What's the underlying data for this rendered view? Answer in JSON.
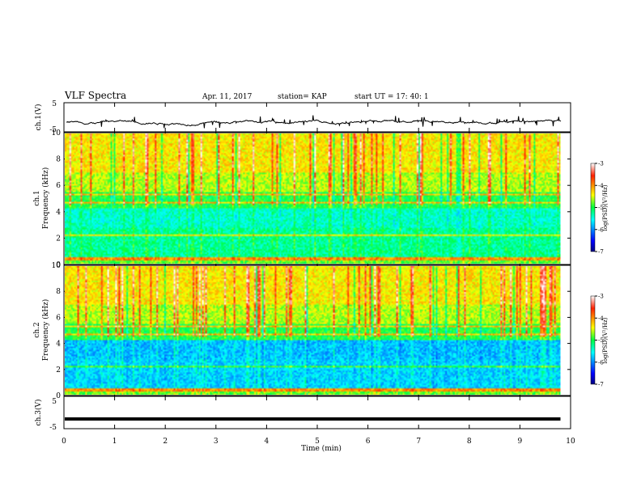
{
  "header": {
    "title": "VLF Spectra",
    "date": "Apr. 11, 2017",
    "station": "station= KAP",
    "start": "start  UT =   17: 40: 1"
  },
  "chart_data": [
    {
      "type": "line",
      "name": "ch1-waveform",
      "ylabel": "ch.1(V)",
      "xlim": [
        0,
        10
      ],
      "ylim": [
        -5,
        5
      ],
      "yticks": [
        "5",
        "-5"
      ],
      "approx_level": -1.5,
      "approx_range": [
        -3.5,
        1.5
      ]
    },
    {
      "type": "heatmap",
      "name": "ch1-spectrogram",
      "ylabel": "ch.1\nFrequency (kHz)",
      "xlim": [
        0,
        9.8
      ],
      "ylim": [
        0,
        10
      ],
      "yticks": [
        "0",
        "2",
        "4",
        "6",
        "8",
        "10"
      ],
      "colorbar": {
        "label": "log(PSD)(V²/Hz)",
        "range": [
          -7,
          -3
        ],
        "ticks": [
          "-3",
          "-4",
          "-5",
          "-6",
          "-7"
        ]
      }
    },
    {
      "type": "heatmap",
      "name": "ch2-spectrogram",
      "ylabel": "ch.2\nFrequency (kHz)",
      "xlim": [
        0,
        9.8
      ],
      "ylim": [
        0,
        10
      ],
      "yticks": [
        "0",
        "2",
        "4",
        "6",
        "8",
        "10"
      ],
      "colorbar": {
        "label": "log(PSD)(V²/Hz)",
        "range": [
          -7,
          -3
        ],
        "ticks": [
          "-3",
          "-4",
          "-5",
          "-6",
          "-7"
        ]
      }
    },
    {
      "type": "line",
      "name": "ch3-waveform",
      "ylabel": "ch.3(V)",
      "xlabel": "Time (min)",
      "xlim": [
        0,
        10
      ],
      "ylim": [
        -5,
        5
      ],
      "yticks": [
        "5",
        "-5"
      ],
      "xticks": [
        "0",
        "1",
        "2",
        "3",
        "4",
        "5",
        "6",
        "7",
        "8",
        "9",
        "10"
      ],
      "constant_value": -2
    }
  ]
}
